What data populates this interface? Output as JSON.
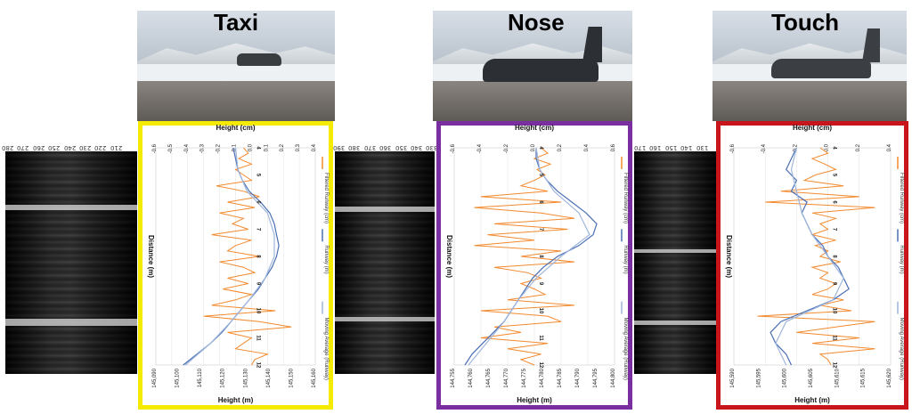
{
  "panels": [
    {
      "id": "taxi",
      "title": "Taxi",
      "border_color": "#f5eb00",
      "ticks": [
        "280",
        "270",
        "260",
        "250",
        "240",
        "230",
        "220",
        "210"
      ],
      "chart_data": {
        "type": "line",
        "top_axis_label": "Height (cm)",
        "top_ticks": [
          "-0.6",
          "-0.5",
          "-0.4",
          "-0.3",
          "-0.2",
          "-0.1",
          "0.0",
          "0.1",
          "0.2",
          "0.3",
          "0.4"
        ],
        "top_range": [
          -0.6,
          0.4
        ],
        "bottom_axis_label": "Height (m)",
        "bottom_ticks": [
          "145,090",
          "145,100",
          "145,110",
          "145,120",
          "145,130",
          "145,140",
          "145,150",
          "145,160"
        ],
        "bottom_range": [
          145090,
          145160
        ],
        "distance_label": "Distance (m)",
        "distance_ticks": [
          "4",
          "5",
          "6",
          "7",
          "8",
          "9",
          "10",
          "11",
          "12"
        ],
        "distance_range": [
          4,
          12
        ],
        "series": [
          {
            "name": "Filtered Runway (cm)",
            "color": "#f28a2e",
            "axis": "top",
            "x": [
              4.0,
              4.2,
              4.4,
              4.6,
              4.8,
              5.0,
              5.2,
              5.4,
              5.6,
              5.8,
              6.0,
              6.2,
              6.4,
              6.6,
              6.8,
              7.0,
              7.2,
              7.4,
              7.6,
              7.8,
              8.0,
              8.2,
              8.4,
              8.6,
              8.8,
              9.0,
              9.2,
              9.4,
              9.6,
              9.8,
              10.0,
              10.2,
              10.4,
              10.6,
              10.8,
              11.0,
              11.2,
              11.4,
              11.6,
              11.8,
              12.0
            ],
            "y": [
              -0.05,
              -0.02,
              -0.08,
              0.0,
              -0.1,
              -0.05,
              0.0,
              -0.22,
              -0.05,
              0.05,
              -0.15,
              0.02,
              -0.2,
              -0.05,
              -0.12,
              -0.02,
              -0.25,
              0.0,
              -0.1,
              -0.15,
              0.05,
              -0.2,
              -0.05,
              0.02,
              -0.15,
              -0.02,
              -0.18,
              0.0,
              -0.1,
              -0.25,
              0.15,
              -0.3,
              0.05,
              0.25,
              -0.15,
              0.0,
              -0.05,
              -0.1,
              0.1,
              0.02,
              0.0
            ]
          },
          {
            "name": "Runway (m)",
            "color": "#4a6fb5",
            "axis": "bottom",
            "x": [
              4.0,
              4.4,
              4.8,
              5.2,
              5.6,
              6.0,
              6.4,
              6.8,
              7.2,
              7.6,
              8.0,
              8.4,
              8.8,
              9.2,
              9.6,
              10.0,
              10.4,
              10.8,
              11.2,
              11.6,
              12.0
            ],
            "y": [
              145124,
              145125,
              145126,
              145128,
              145131,
              145136,
              145140,
              145142,
              145143,
              145144,
              145143,
              145141,
              145138,
              145135,
              145131,
              145127,
              145123,
              145119,
              145114,
              145108,
              145102
            ]
          },
          {
            "name": "Moving Average (Runway)",
            "color": "#9fb6dc",
            "axis": "bottom",
            "x": [
              4.0,
              4.8,
              5.6,
              6.4,
              7.2,
              8.0,
              8.8,
              9.6,
              10.4,
              11.2,
              12.0
            ],
            "y": [
              145125,
              145126,
              145130,
              145139,
              145142,
              145142,
              145138,
              145131,
              145123,
              145114,
              145103
            ]
          }
        ]
      }
    },
    {
      "id": "nose",
      "title": "Nose",
      "border_color": "#7a2fa0",
      "ticks": [
        "390",
        "380",
        "370",
        "360",
        "350",
        "340",
        "330",
        "320",
        "310"
      ],
      "chart_data": {
        "type": "line",
        "top_axis_label": "Height (cm)",
        "top_ticks": [
          "-0.6",
          "-0.4",
          "-0.2",
          "0.0",
          "0.2",
          "0.4",
          "0.6"
        ],
        "top_range": [
          -0.6,
          0.6
        ],
        "bottom_axis_label": "Height (m)",
        "bottom_ticks": [
          "144,755",
          "144,760",
          "144,765",
          "144,770",
          "144,775",
          "144,780",
          "144,785",
          "144,790",
          "144,795",
          "144,800"
        ],
        "bottom_range": [
          144755,
          144800
        ],
        "distance_label": "Distance (m)",
        "distance_ticks": [
          "4",
          "5",
          "6",
          "7",
          "8",
          "9",
          "10",
          "11",
          "12"
        ],
        "distance_range": [
          4,
          12
        ],
        "series": [
          {
            "name": "Filtered Runway (cm)",
            "color": "#f28a2e",
            "axis": "top",
            "x": [
              4.0,
              4.2,
              4.4,
              4.6,
              4.8,
              5.0,
              5.2,
              5.4,
              5.6,
              5.8,
              6.0,
              6.2,
              6.4,
              6.6,
              6.8,
              7.0,
              7.2,
              7.4,
              7.6,
              7.8,
              8.0,
              8.2,
              8.4,
              8.6,
              8.8,
              9.0,
              9.2,
              9.4,
              9.6,
              9.8,
              10.0,
              10.2,
              10.4,
              10.6,
              10.8,
              11.0,
              11.2,
              11.4,
              11.6,
              11.8,
              12.0
            ],
            "y": [
              0.05,
              0.1,
              0.0,
              0.12,
              0.02,
              0.08,
              0.0,
              -0.1,
              0.1,
              -0.4,
              0.2,
              -0.45,
              0.05,
              0.3,
              -0.3,
              0.25,
              -0.35,
              0.0,
              -0.45,
              0.2,
              -0.1,
              0.3,
              -0.3,
              -0.05,
              0.05,
              -0.1,
              0.0,
              0.08,
              -0.2,
              0.3,
              -0.4,
              0.1,
              0.2,
              -0.3,
              -0.1,
              -0.4,
              0.1,
              -0.2,
              0.05,
              -0.1,
              0.0
            ]
          },
          {
            "name": "Runway (m)",
            "color": "#4a6fb5",
            "axis": "bottom",
            "x": [
              4.0,
              4.4,
              4.8,
              5.2,
              5.6,
              6.0,
              6.4,
              6.8,
              7.2,
              7.6,
              8.0,
              8.4,
              8.8,
              9.2,
              9.6,
              10.0,
              10.4,
              10.8,
              11.2,
              11.6,
              12.0
            ],
            "y": [
              144778,
              144778,
              144779,
              144781,
              144784,
              144788,
              144792,
              144795,
              144794,
              144790,
              144784,
              144780,
              144777,
              144775,
              144773,
              144771,
              144769,
              144766,
              144763,
              144760,
              144758
            ]
          },
          {
            "name": "Moving Average (Runway)",
            "color": "#9fb6dc",
            "axis": "bottom",
            "x": [
              4.0,
              4.8,
              5.6,
              6.4,
              7.2,
              8.0,
              8.8,
              9.6,
              10.4,
              11.2,
              12.0
            ],
            "y": [
              144778,
              144779,
              144783,
              144790,
              144793,
              144785,
              144778,
              144773,
              144769,
              144764,
              144759
            ]
          }
        ]
      }
    },
    {
      "id": "touch",
      "title": "Touch",
      "border_color": "#c8151b",
      "ticks": [
        "170",
        "160",
        "150",
        "140",
        "130"
      ],
      "chart_data": {
        "type": "line",
        "top_axis_label": "Height (cm)",
        "top_ticks": [
          "-0.6",
          "-0.4",
          "-0.2",
          "0.0",
          "0.2",
          "0.4"
        ],
        "top_range": [
          -0.6,
          0.4
        ],
        "bottom_axis_label": "Height (m)",
        "bottom_ticks": [
          "145,590",
          "145,595",
          "145,600",
          "145,605",
          "145,610",
          "145,615",
          "145,620"
        ],
        "bottom_range": [
          145590,
          145620
        ],
        "distance_label": "Distance (m)",
        "distance_ticks": [
          "4",
          "5",
          "6",
          "7",
          "8",
          "9",
          "10",
          "11",
          "12"
        ],
        "distance_range": [
          4,
          12
        ],
        "series": [
          {
            "name": "Filtered Runway (cm)",
            "color": "#f28a2e",
            "axis": "top",
            "x": [
              4.0,
              4.2,
              4.4,
              4.6,
              4.8,
              5.0,
              5.2,
              5.4,
              5.6,
              5.8,
              6.0,
              6.2,
              6.4,
              6.6,
              6.8,
              7.0,
              7.2,
              7.4,
              7.6,
              7.8,
              8.0,
              8.2,
              8.4,
              8.6,
              8.8,
              9.0,
              9.2,
              9.4,
              9.6,
              9.8,
              10.0,
              10.2,
              10.4,
              10.6,
              10.8,
              11.0,
              11.2,
              11.4,
              11.6,
              11.8,
              12.0
            ],
            "y": [
              -0.05,
              0.0,
              -0.1,
              -0.02,
              0.05,
              -0.08,
              -0.15,
              0.1,
              -0.3,
              0.2,
              -0.4,
              0.3,
              -0.1,
              0.05,
              -0.05,
              0.0,
              -0.1,
              0.05,
              -0.08,
              0.0,
              -0.05,
              0.08,
              -0.1,
              0.0,
              -0.05,
              0.05,
              0.0,
              -0.1,
              0.1,
              -0.05,
              0.15,
              -0.45,
              0.3,
              0.05,
              -0.2,
              0.2,
              -0.1,
              0.3,
              -0.05,
              0.0,
              0.02
            ]
          },
          {
            "name": "Runway (m)",
            "color": "#4a6fb5",
            "axis": "bottom",
            "x": [
              4.0,
              4.4,
              4.8,
              5.2,
              5.6,
              6.0,
              6.4,
              6.8,
              7.2,
              7.6,
              8.0,
              8.4,
              8.8,
              9.2,
              9.6,
              10.0,
              10.4,
              10.8,
              11.2,
              11.6,
              12.0
            ],
            "y": [
              145602,
              145601,
              145600,
              145602,
              145601,
              145604,
              145603,
              145604,
              145605,
              145607,
              145608,
              145610,
              145611,
              145612,
              145609,
              145604,
              145599,
              145597,
              145598,
              145600,
              145601
            ]
          },
          {
            "name": "Moving Average (Runway)",
            "color": "#9fb6dc",
            "axis": "bottom",
            "x": [
              4.0,
              4.8,
              5.6,
              6.4,
              7.2,
              8.0,
              8.8,
              9.6,
              10.4,
              11.2,
              12.0
            ],
            "y": [
              145602,
              145601,
              145602,
              145603,
              145605,
              145608,
              145611,
              145609,
              145600,
              145598,
              145600
            ]
          }
        ]
      }
    }
  ]
}
